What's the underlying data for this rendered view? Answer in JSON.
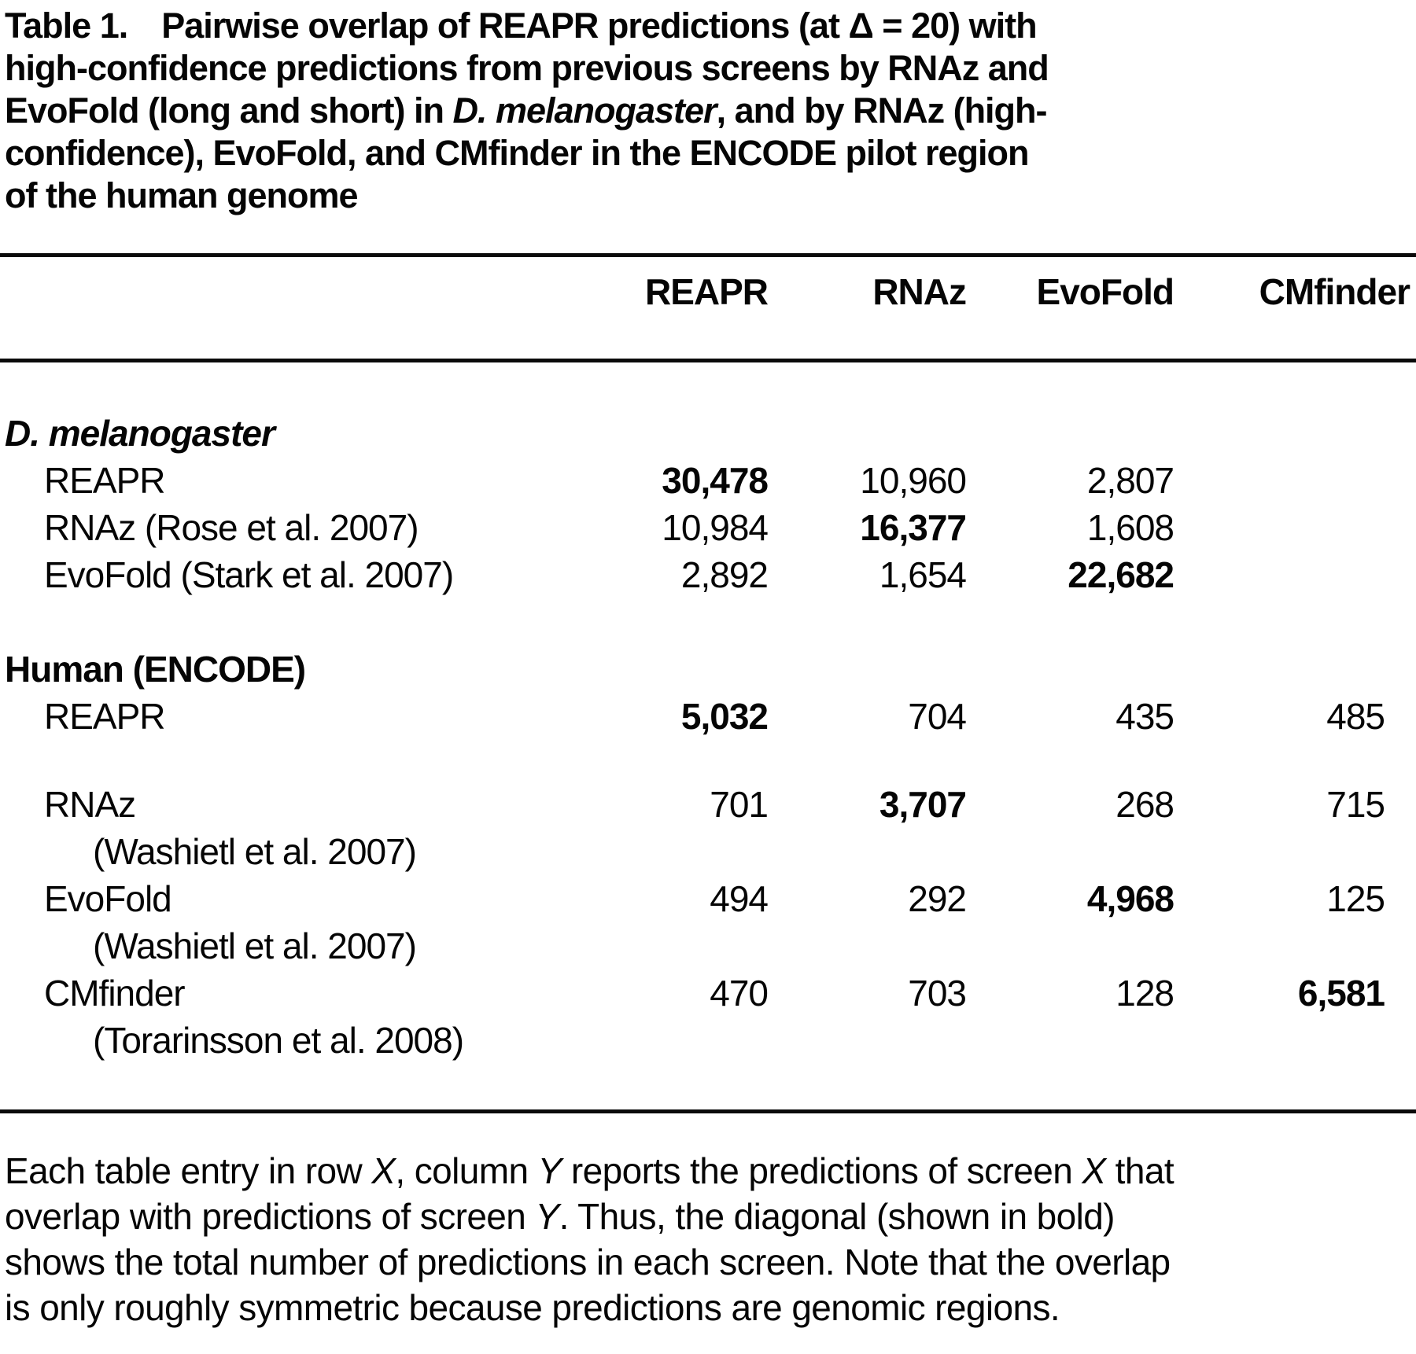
{
  "table": {
    "title_segments": [
      {
        "t": "Table 1.  Pairwise overlap of REAPR predictions (at Δ = 20) with",
        "br": true
      },
      {
        "t": "high-confidence predictions from previous screens by RNAz and",
        "br": true
      },
      {
        "t": "EvoFold (long and short) in "
      },
      {
        "t": "D. melanogaster",
        "i": true
      },
      {
        "t": ", and by RNAz (high-",
        "br": true
      },
      {
        "t": "confidence), EvoFold, and CMfinder in the ENCODE pilot region",
        "br": true
      },
      {
        "t": "of the human genome"
      }
    ],
    "columns": [
      "REAPR",
      "RNAz",
      "EvoFold",
      "CMfinder"
    ],
    "sections": [
      {
        "header": "D. melanogaster",
        "rows": [
          {
            "label": "REAPR",
            "values": [
              "30,478",
              "10,960",
              "2,807",
              ""
            ]
          },
          {
            "label": "RNAz (Rose et al. 2007)",
            "values": [
              "10,984",
              "16,377",
              "1,608",
              ""
            ]
          },
          {
            "label": "EvoFold (Stark et al. 2007)",
            "values": [
              "2,892",
              "1,654",
              "22,682",
              ""
            ]
          }
        ]
      },
      {
        "header": "Human (ENCODE)",
        "rows": [
          {
            "label": "REAPR",
            "values": [
              "5,032",
              "704",
              "435",
              "485"
            ]
          },
          {
            "label": "RNAz",
            "label2": "(Washietl et al. 2007)",
            "values": [
              "701",
              "3,707",
              "268",
              "715"
            ]
          },
          {
            "label": "EvoFold",
            "label2": "(Washietl et al. 2007)",
            "values": [
              "494",
              "292",
              "4,968",
              "125"
            ]
          },
          {
            "label": "CMfinder",
            "label2": "(Torarinsson et al. 2008)",
            "values": [
              "470",
              "703",
              "128",
              "6,581"
            ]
          }
        ]
      }
    ],
    "footnote_segments": [
      {
        "t": "Each table entry in row "
      },
      {
        "t": "X",
        "i": true
      },
      {
        "t": ", column "
      },
      {
        "t": "Y",
        "i": true
      },
      {
        "t": " reports the predictions of screen "
      },
      {
        "t": "X",
        "i": true
      },
      {
        "t": " that",
        "br": true
      },
      {
        "t": "overlap with predictions of screen "
      },
      {
        "t": "Y",
        "i": true
      },
      {
        "t": ". Thus, the diagonal (shown in bold)",
        "br": true
      },
      {
        "t": "shows the total number of predictions in each screen. Note that the overlap",
        "br": true
      },
      {
        "t": "is only roughly symmetric because predictions are genomic regions."
      }
    ]
  }
}
